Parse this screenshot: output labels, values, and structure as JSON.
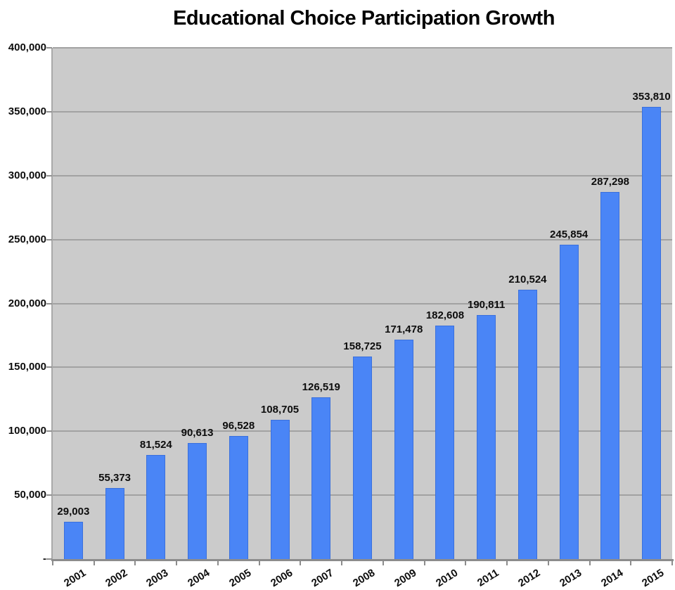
{
  "chart_data": {
    "type": "bar",
    "title": "Educational Choice Participation Growth",
    "categories": [
      "2001",
      "2002",
      "2003",
      "2004",
      "2005",
      "2006",
      "2007",
      "2008",
      "2009",
      "2010",
      "2011",
      "2012",
      "2013",
      "2014",
      "2015"
    ],
    "values": [
      29003,
      55373,
      81524,
      90613,
      96528,
      108705,
      126519,
      158725,
      171478,
      182608,
      190811,
      210524,
      245854,
      287298,
      353810
    ],
    "value_labels": [
      "29,003",
      "55,373",
      "81,524",
      "90,613",
      "96,528",
      "108,705",
      "126,519",
      "158,725",
      "171,478",
      "182,608",
      "190,811",
      "210,524",
      "245,854",
      "287,298",
      "353,810"
    ],
    "xlabel": "",
    "ylabel": "",
    "ylim": [
      0,
      400000
    ],
    "yticks": [
      0,
      50000,
      100000,
      150000,
      200000,
      250000,
      300000,
      350000,
      400000
    ],
    "ytick_labels": [
      "-",
      "50,000",
      "100,000",
      "150,000",
      "200,000",
      "250,000",
      "300,000",
      "350,000",
      "400,000"
    ],
    "grid": true,
    "legend": false,
    "x_label_rotation_deg": -32,
    "colors": {
      "bar_fill": "#4a85f6",
      "bar_border": "#3a70dd",
      "plot_background": "#cbcbcb",
      "gridline": "#a2a2a2",
      "axis_line_y": "#a9a9a9",
      "axis_line_x": "#8c8c8c",
      "tick": "#919191",
      "text": "#0d0d0d",
      "page_background": "#ffffff"
    }
  }
}
